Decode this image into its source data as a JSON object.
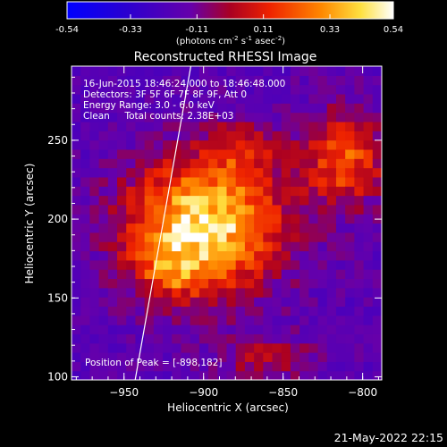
{
  "chart_data": {
    "type": "heatmap",
    "title": "Reconstructed RHESSI Image",
    "xlabel": "Heliocentric X (arcsec)",
    "ylabel": "Heliocentric Y (arcsec)",
    "xlim": [
      -983,
      -788
    ],
    "ylim": [
      98,
      297
    ],
    "xticks": [
      -950,
      -900,
      -850,
      -800
    ],
    "yticks": [
      100,
      150,
      200,
      250
    ],
    "colorbar": {
      "min": -0.54,
      "max": 0.54,
      "ticks": [
        "-0.54",
        "-0.33",
        "-0.11",
        "0.11",
        "0.33",
        "0.54"
      ],
      "unit_prefix": "(photons cm",
      "unit_exp1": "-2",
      "unit_mid": " s",
      "unit_exp2": "-1",
      "unit_mid2": " asec",
      "unit_exp3": "-2",
      "unit_suffix": ")"
    },
    "annotations": [
      "16-Jun-2015 18:46:24.000 to 18:46:48.000",
      "Detectors: 3F 5F 6F 7F 8F 9F, Att 0",
      "Energy Range: 3.0 - 6.0 keV",
      "Clean     Total counts: 2.38E+03"
    ],
    "peak_label": "Position of Peak = [-898,182]",
    "peak": [
      -898,
      182
    ],
    "limb_line": [
      [
        -943,
        98
      ],
      [
        -908,
        297
      ]
    ],
    "sources": [
      {
        "x": -900,
        "y": 196,
        "sx": 32,
        "sy": 28,
        "amp": 1.0
      },
      {
        "x": -922,
        "y": 168,
        "sx": 14,
        "sy": 12,
        "amp": 0.35
      },
      {
        "x": -812,
        "y": 238,
        "sx": 18,
        "sy": 20,
        "amp": 0.55
      },
      {
        "x": -876,
        "y": 245,
        "sx": 14,
        "sy": 12,
        "amp": 0.35
      },
      {
        "x": -860,
        "y": 112,
        "sx": 22,
        "sy": 10,
        "amp": 0.25
      }
    ],
    "grid": false
  },
  "footer": {
    "timestamp": "21-May-2022 22:15"
  }
}
